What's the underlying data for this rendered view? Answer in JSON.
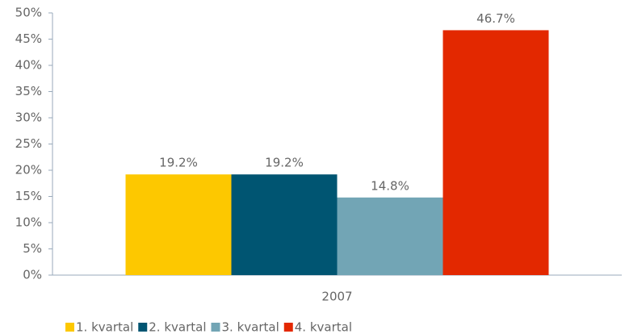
{
  "chart_data": {
    "type": "bar",
    "categories": [
      "2007"
    ],
    "series": [
      {
        "name": "1. kvartal",
        "color": "#fdc800",
        "values": [
          19.2
        ],
        "value_labels": [
          "19.2%"
        ]
      },
      {
        "name": "2. kvartal",
        "color": "#005572",
        "values": [
          19.2
        ],
        "value_labels": [
          "19.2%"
        ]
      },
      {
        "name": "3. kvartal",
        "color": "#72a5b5",
        "values": [
          14.8
        ],
        "value_labels": [
          "14.8%"
        ]
      },
      {
        "name": "4. kvartal",
        "color": "#e32800",
        "values": [
          46.7
        ],
        "value_labels": [
          "46.7%"
        ]
      }
    ],
    "ylim": [
      0,
      50
    ],
    "yticks": [
      {
        "value": 0,
        "label": "0%"
      },
      {
        "value": 5,
        "label": "5%"
      },
      {
        "value": 10,
        "label": "10%"
      },
      {
        "value": 15,
        "label": "15%"
      },
      {
        "value": 20,
        "label": "20%"
      },
      {
        "value": 25,
        "label": "25%"
      },
      {
        "value": 30,
        "label": "30%"
      },
      {
        "value": 35,
        "label": "35%"
      },
      {
        "value": 40,
        "label": "40%"
      },
      {
        "value": 45,
        "label": "45%"
      },
      {
        "value": 50,
        "label": "50%"
      }
    ],
    "grid": false,
    "legend": "bottom"
  }
}
